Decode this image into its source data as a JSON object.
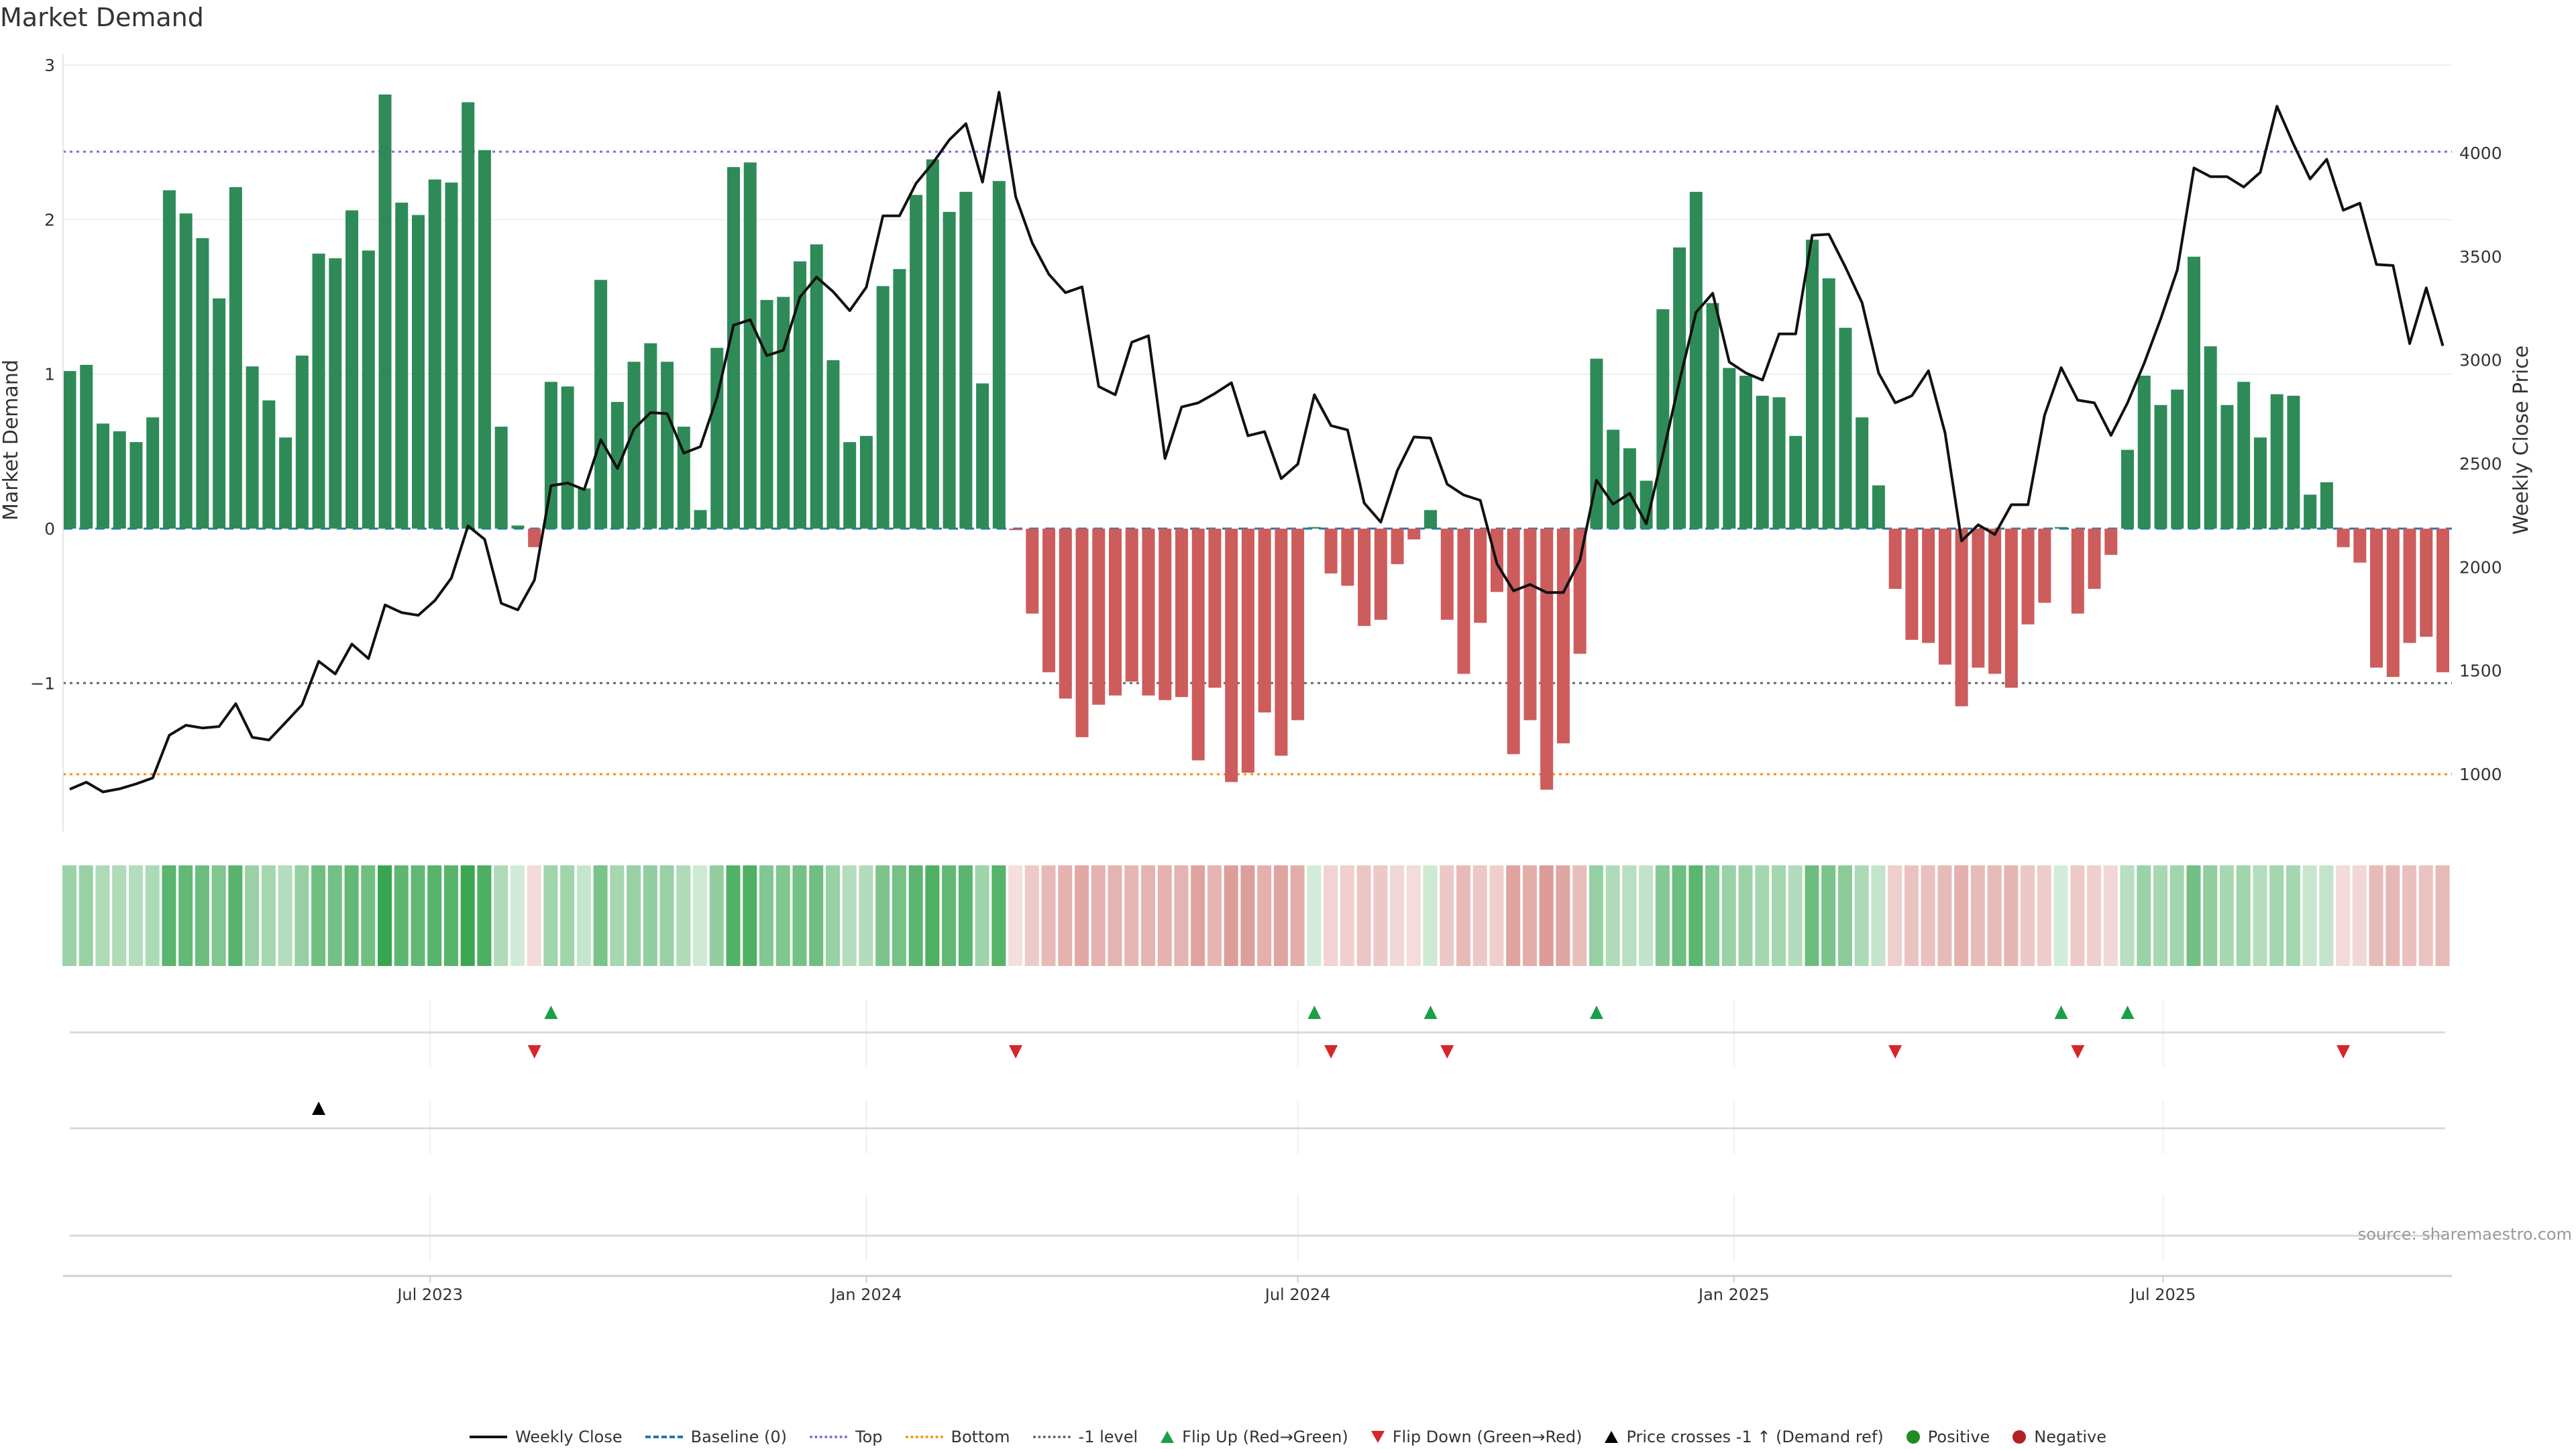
{
  "title": "Market Demand",
  "source": "source: sharemaestro.com",
  "legend": [
    {
      "label": "Weekly Close",
      "kind": "line",
      "color": "#111111",
      "style": "solid"
    },
    {
      "label": "Baseline (0)",
      "kind": "line",
      "color": "#1f77b4",
      "style": "dashed"
    },
    {
      "label": "Top",
      "kind": "line",
      "color": "#7b68ee",
      "style": "dotted"
    },
    {
      "label": "Bottom",
      "kind": "line",
      "color": "#ff8c00",
      "style": "dotted"
    },
    {
      "label": "-1 level",
      "kind": "line",
      "color": "#666666",
      "style": "dotted"
    },
    {
      "label": "Flip Up (Red→Green)",
      "kind": "tri-up",
      "color": "#1a9e4a"
    },
    {
      "label": "Flip Down (Green→Red)",
      "kind": "tri-down",
      "color": "#d62728"
    },
    {
      "label": "Price crosses -1 ↑ (Demand ref)",
      "kind": "tri-up",
      "color": "#000000"
    },
    {
      "label": "Positive",
      "kind": "dot",
      "color": "#228b22"
    },
    {
      "label": "Negative",
      "kind": "dot",
      "color": "#b22222"
    }
  ],
  "chart_data": {
    "type": "bar",
    "title": "Market Demand",
    "ylabel": "Market Demand",
    "y2label": "Weekly Close Price",
    "x_start": "2023-01-30",
    "x_step_days": 7,
    "ylim": [
      -1.95,
      3.05
    ],
    "y2lim": [
      700,
      4400
    ],
    "yticks": [
      {
        "v": 3,
        "label": "3"
      },
      {
        "v": 2,
        "label": "2"
      },
      {
        "v": 1,
        "label": "1"
      },
      {
        "v": 0,
        "label": "0"
      },
      {
        "v": -1,
        "label": "−1"
      }
    ],
    "y2ticks": [
      {
        "v": 4000,
        "label": "4000"
      },
      {
        "v": 3500,
        "label": "3500"
      },
      {
        "v": 3000,
        "label": "3000"
      },
      {
        "v": 2500,
        "label": "2500"
      },
      {
        "v": 2000,
        "label": "2000"
      },
      {
        "v": 1500,
        "label": "1500"
      },
      {
        "v": 1000,
        "label": "1000"
      }
    ],
    "xticks": [
      {
        "date": "2023-07-01",
        "label": "Jul 2023"
      },
      {
        "date": "2024-01-01",
        "label": "Jan 2024"
      },
      {
        "date": "2024-07-01",
        "label": "Jul 2024"
      },
      {
        "date": "2025-01-01",
        "label": "Jan 2025"
      },
      {
        "date": "2025-07-01",
        "label": "Jul 2025"
      }
    ],
    "levels": {
      "top": 2.44,
      "bottom": -1.59,
      "minus_one": -1,
      "baseline": 0
    },
    "colors": {
      "positive": "#2e8b57",
      "negative": "#cd5c5c",
      "heat_pos": "56,166,80",
      "heat_neg": "205,110,105"
    },
    "demand": [
      1.02,
      1.06,
      0.68,
      0.63,
      0.56,
      0.72,
      2.19,
      2.04,
      1.88,
      1.49,
      2.21,
      1.05,
      0.83,
      0.59,
      1.12,
      1.78,
      1.75,
      2.06,
      1.8,
      2.81,
      2.11,
      2.03,
      2.26,
      2.24,
      2.76,
      2.45,
      0.66,
      0.02,
      -0.12,
      0.95,
      0.92,
      0.26,
      1.61,
      0.82,
      1.08,
      1.2,
      1.08,
      0.66,
      0.12,
      1.17,
      2.34,
      2.37,
      1.48,
      1.5,
      1.73,
      1.84,
      1.09,
      0.56,
      0.6,
      1.57,
      1.68,
      2.16,
      2.39,
      2.05,
      2.18,
      0.94,
      2.25,
      -0.01,
      -0.55,
      -0.93,
      -1.1,
      -1.35,
      -1.14,
      -1.08,
      -0.99,
      -1.08,
      -1.11,
      -1.09,
      -1.5,
      -1.03,
      -1.64,
      -1.58,
      -1.19,
      -1.47,
      -1.24,
      0.01,
      -0.29,
      -0.37,
      -0.63,
      -0.59,
      -0.23,
      -0.07,
      0.12,
      -0.59,
      -0.94,
      -0.61,
      -0.41,
      -1.46,
      -1.24,
      -1.69,
      -1.39,
      -0.81,
      1.1,
      0.64,
      0.52,
      0.31,
      1.42,
      1.82,
      2.18,
      1.46,
      1.04,
      0.99,
      0.86,
      0.85,
      0.6,
      1.87,
      1.62,
      1.3,
      0.72,
      0.28,
      -0.39,
      -0.72,
      -0.74,
      -0.88,
      -1.15,
      -0.9,
      -0.94,
      -1.03,
      -0.62,
      -0.48,
      0.01,
      -0.55,
      -0.39,
      -0.17,
      0.51,
      0.99,
      0.8,
      0.9,
      1.76,
      1.18,
      0.8,
      0.95,
      0.59,
      0.87,
      0.86,
      0.22,
      0.3,
      -0.12,
      -0.22,
      -0.9,
      -0.96,
      -0.74,
      -0.7,
      -0.93
    ],
    "weekly_close": [
      927,
      961,
      914,
      929,
      953,
      982,
      1188,
      1236,
      1223,
      1230,
      1340,
      1178,
      1165,
      1249,
      1335,
      1545,
      1484,
      1628,
      1558,
      1817,
      1780,
      1767,
      1838,
      1948,
      2199,
      2134,
      1825,
      1793,
      1937,
      2393,
      2406,
      2374,
      2615,
      2476,
      2667,
      2746,
      2741,
      2550,
      2581,
      2819,
      3168,
      3194,
      3021,
      3047,
      3304,
      3400,
      3330,
      3238,
      3351,
      3696,
      3696,
      3853,
      3950,
      4063,
      4141,
      3859,
      4293,
      3788,
      3565,
      3414,
      3325,
      3353,
      2872,
      2832,
      3086,
      3117,
      2524,
      2773,
      2793,
      2838,
      2890,
      2634,
      2654,
      2427,
      2497,
      2832,
      2683,
      2662,
      2309,
      2217,
      2466,
      2628,
      2623,
      2400,
      2348,
      2322,
      2016,
      1885,
      1916,
      1877,
      1877,
      2034,
      2419,
      2304,
      2356,
      2209,
      2545,
      2898,
      3230,
      3322,
      2990,
      2937,
      2903,
      3126,
      3126,
      3602,
      3607,
      3448,
      3277,
      2937,
      2793,
      2827,
      2948,
      2649,
      2126,
      2204,
      2157,
      2301,
      2301,
      2733,
      2963,
      2806,
      2793,
      2636,
      2793,
      2984,
      3199,
      3435,
      3927,
      3885,
      3885,
      3835,
      3906,
      4225,
      4042,
      3874,
      3969,
      3723,
      3757,
      3461,
      3456,
      3079,
      3348,
      3068
    ],
    "flip_up_weeks": [
      29,
      75,
      82,
      92,
      120,
      124
    ],
    "flip_down_weeks": [
      28,
      57,
      76,
      83,
      110,
      121,
      137
    ],
    "price_cross_weeks": [
      15
    ]
  }
}
